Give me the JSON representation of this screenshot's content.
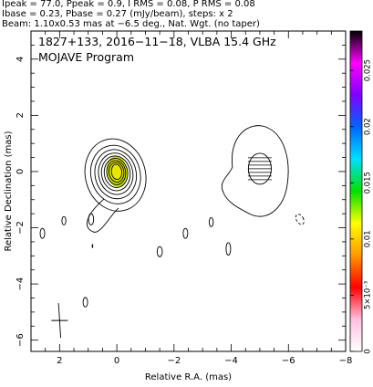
{
  "header": {
    "line1": "Ipeak = 77.0, Ppeak = 0.9, I RMS = 0.08, P RMS = 0.08",
    "line2": "Ibase = 0.23, Pbase = 0.27 (mJy/beam), steps: x 2",
    "line3": "Beam: 1.10x0.53 mas at −6.5 deg., Nat. Wgt. (no taper)"
  },
  "chart_data": {
    "type": "contour",
    "title": "1827+133, 2016−11−18, VLBA 15.4 GHz",
    "subtitle": "MOJAVE Program",
    "xlabel": "Relative R.A. (mas)",
    "ylabel": "Relative Declination (mas)",
    "xlim": [
      3,
      -8
    ],
    "ylim": [
      -6.4,
      5
    ],
    "x_ticks": [
      2,
      0,
      -2,
      -4,
      -6,
      -8
    ],
    "x_tick_labels": [
      "2",
      "0",
      "−2",
      "−4",
      "−6",
      "−8"
    ],
    "y_ticks": [
      4,
      2,
      0,
      -2,
      -4,
      -6
    ],
    "y_tick_labels": [
      "4",
      "2",
      "0",
      "−2",
      "−4",
      "−6"
    ],
    "stokes_i": {
      "peak_mJy_per_beam": 77.0,
      "rms": 0.08,
      "base_contour": 0.23,
      "contour_step": 2
    },
    "polarization": {
      "peak_mJy_per_beam": 0.9,
      "rms": 0.08,
      "base": 0.27
    },
    "beam": {
      "major_mas": 1.1,
      "minor_mas": 0.53,
      "pa_deg": -6.5,
      "weighting": "Nat. Wgt. (no taper)"
    },
    "components": [
      {
        "name": "core",
        "ra": 0.0,
        "dec": 0.0,
        "contours": [
          {
            "a": 1.3,
            "b": 1.05,
            "pa": -15
          },
          {
            "a": 1.05,
            "b": 0.86,
            "pa": -15
          },
          {
            "a": 0.88,
            "b": 0.72,
            "pa": -12
          },
          {
            "a": 0.74,
            "b": 0.6,
            "pa": -10
          },
          {
            "a": 0.62,
            "b": 0.5,
            "pa": -8
          },
          {
            "a": 0.52,
            "b": 0.41,
            "pa": -7
          },
          {
            "a": 0.43,
            "b": 0.33,
            "pa": -7
          },
          {
            "a": 0.35,
            "b": 0.26,
            "pa": -7
          },
          {
            "a": 0.27,
            "b": 0.18,
            "pa": -7
          }
        ]
      },
      {
        "name": "lobe",
        "ra": -5.0,
        "dec": 0.1,
        "contours": [
          {
            "a": 1.35,
            "b": 1.3,
            "pa": 0
          },
          {
            "a": 0.55,
            "b": 0.4,
            "pa": 0
          }
        ]
      }
    ],
    "isolated_islands": [
      {
        "ra": 2.6,
        "dec": -2.2,
        "a": 0.18,
        "b": 0.08
      },
      {
        "ra": 1.85,
        "dec": -1.75,
        "a": 0.15,
        "b": 0.07
      },
      {
        "ra": 0.9,
        "dec": -1.7,
        "a": 0.2,
        "b": 0.09
      },
      {
        "ra": -1.5,
        "dec": -2.85,
        "a": 0.18,
        "b": 0.09
      },
      {
        "ra": -2.4,
        "dec": -2.2,
        "a": 0.18,
        "b": 0.08
      },
      {
        "ra": -3.3,
        "dec": -1.8,
        "a": 0.16,
        "b": 0.07
      },
      {
        "ra": -3.9,
        "dec": -2.75,
        "a": 0.22,
        "b": 0.08
      },
      {
        "ra": 1.1,
        "dec": -4.65,
        "a": 0.17,
        "b": 0.08
      }
    ],
    "negative_islands": [
      {
        "ra": -6.4,
        "dec": -1.7,
        "a": 0.2,
        "b": 0.12
      }
    ],
    "polarization_vectors_at": {
      "ra": -5.0,
      "dec": 0.0
    },
    "beam_marker_at": {
      "ra": 2.0,
      "dec": -5.3
    },
    "colorbar": {
      "min": 0,
      "max": 0.0285,
      "tick_values": [
        0,
        0.005,
        0.01,
        0.015,
        0.02,
        0.025
      ],
      "tick_labels": [
        "0",
        "5×10⁻³",
        "0.01",
        "0.015",
        "0.02",
        "0.025"
      ],
      "colors": [
        "#ffffff",
        "#ffc0e0",
        "#ff0000",
        "#ff9900",
        "#ffff00",
        "#00e000",
        "#00e0ff",
        "#0066ff",
        "#8000ff",
        "#ff00ff",
        "#000000"
      ]
    }
  }
}
